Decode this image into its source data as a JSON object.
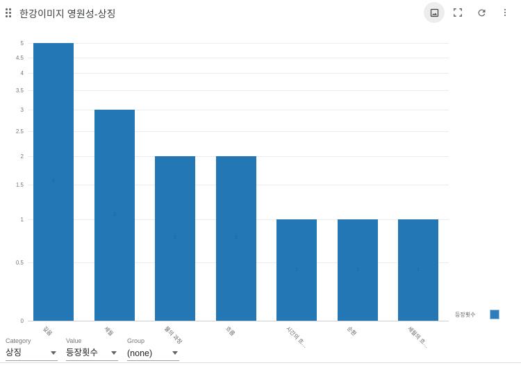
{
  "header": {
    "title": "한강이미지 영원성-상징",
    "actions": [
      "image-export",
      "fullscreen",
      "refresh",
      "more-options"
    ]
  },
  "chart_data": {
    "type": "bar",
    "title": "한강이미지 영원성-상징",
    "categories": [
      "깊음",
      "세월",
      "물의 과정",
      "흐름",
      "시간의 흐…",
      "순환",
      "세월의 흐…"
    ],
    "values": [
      5,
      3,
      2,
      2,
      1,
      1,
      1
    ],
    "series_name": "등장횟수",
    "xlabel": "",
    "ylabel": "",
    "ylim": [
      0,
      5
    ],
    "yticks": [
      0,
      0.5,
      1,
      1.5,
      2,
      2.5,
      3,
      3.5,
      4,
      4.5,
      5
    ],
    "y_scale": "nonlinear-log",
    "grid": true,
    "value_labels_shown": true,
    "legend_position": "right",
    "bar_color": "#2377b4"
  },
  "legend": {
    "label": "등장횟수"
  },
  "controls": {
    "category": {
      "label": "Category",
      "value": "상징"
    },
    "value": {
      "label": "Value",
      "value": "등장횟수"
    },
    "group": {
      "label": "Group",
      "value": "(none)"
    }
  }
}
